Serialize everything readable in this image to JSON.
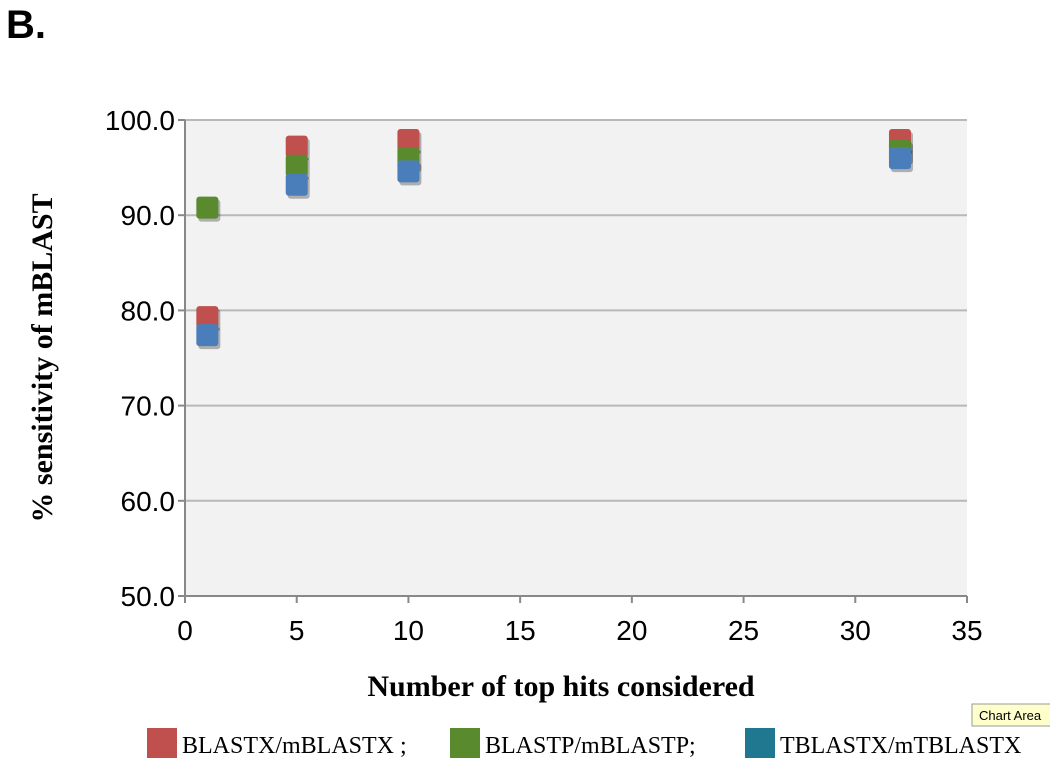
{
  "panel_label": "B.",
  "tooltip": "Chart Area",
  "chart_data": {
    "type": "scatter",
    "title": "",
    "xlabel": "Number of top hits considered",
    "ylabel": "% sensitivity of mBLAST",
    "xlim": [
      0,
      35
    ],
    "ylim": [
      50,
      100
    ],
    "xticks": [
      0,
      5,
      10,
      15,
      20,
      25,
      30,
      35
    ],
    "yticks": [
      50,
      60,
      70,
      80,
      90,
      100
    ],
    "ytick_format": 1,
    "grid": "horizontal",
    "legend_position": "bottom",
    "series": [
      {
        "name": "BLASTX/mBLASTX ;",
        "color": "#c0504d",
        "x": [
          1,
          5,
          10,
          32
        ],
        "y": [
          79.3,
          97.2,
          97.9,
          97.9
        ]
      },
      {
        "name": "BLASTP/mBLASTP;",
        "color": "#5a8a2e",
        "x": [
          1,
          5,
          10,
          32
        ],
        "y": [
          90.8,
          95.2,
          96.0,
          96.8
        ]
      },
      {
        "name": "TBLASTX/mTBLASTX",
        "color": "#4a7ebb",
        "x": [
          1,
          5,
          10,
          32
        ],
        "y": [
          77.4,
          93.2,
          94.6,
          96.0
        ]
      }
    ],
    "legend_swatch_colors": [
      "#c0504d",
      "#5a8a2e",
      "#1f7890"
    ]
  }
}
